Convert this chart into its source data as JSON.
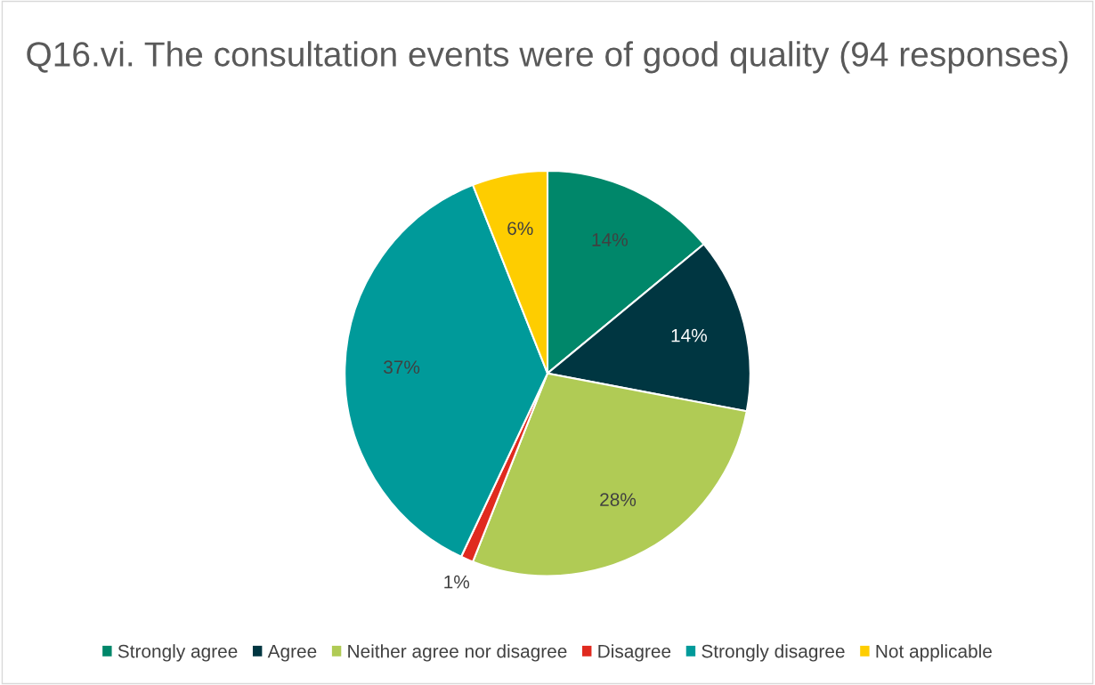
{
  "chart_data": {
    "type": "pie",
    "title": "Q16.vi. The consultation events were of good quality (94 responses)",
    "categories": [
      "Strongly agree",
      "Agree",
      "Neither agree nor disagree",
      "Disagree",
      "Strongly disagree",
      "Not applicable"
    ],
    "values": [
      14,
      14,
      28,
      1,
      37,
      6
    ],
    "value_labels": [
      "14%",
      "14%",
      "28%",
      "1%",
      "37%",
      "6%"
    ],
    "colors": [
      "#00876a",
      "#003641",
      "#b0cb55",
      "#e02a1f",
      "#009a9a",
      "#fecd00"
    ],
    "legend": "bottom"
  }
}
